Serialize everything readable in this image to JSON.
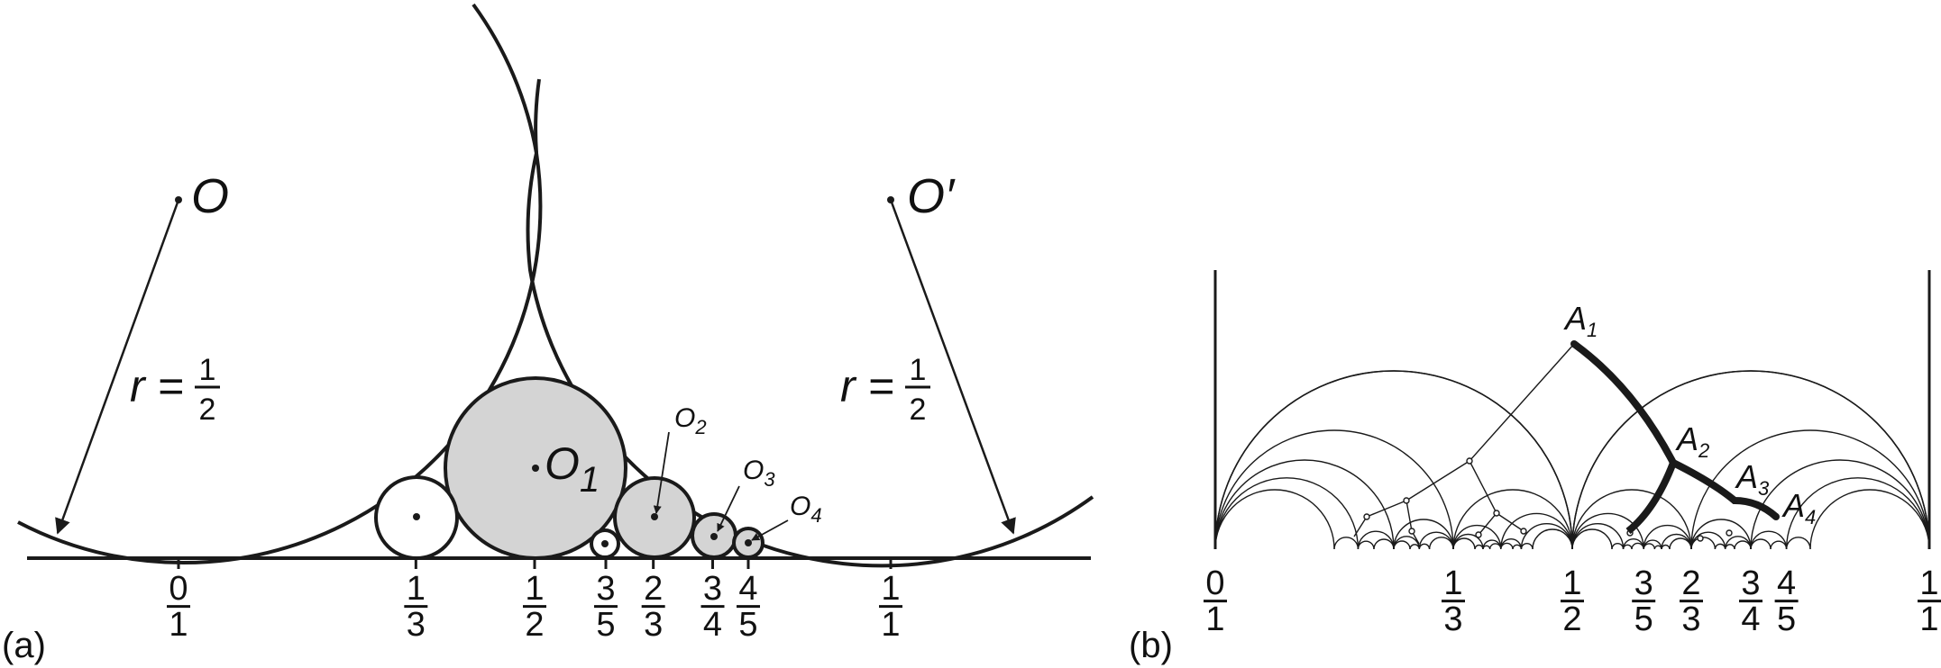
{
  "panel_a": {
    "label": "(a)",
    "centers": {
      "left": "O",
      "right": "O′",
      "big": "O",
      "big_sub": "1"
    },
    "small_centers": [
      {
        "main": "O",
        "sub": "2"
      },
      {
        "main": "O",
        "sub": "3"
      },
      {
        "main": "O",
        "sub": "4"
      }
    ],
    "radius_label": {
      "prefix": "r =",
      "num": "1",
      "den": "2"
    },
    "fractions": [
      {
        "num": "0",
        "den": "1"
      },
      {
        "num": "1",
        "den": "3"
      },
      {
        "num": "1",
        "den": "2"
      },
      {
        "num": "3",
        "den": "5"
      },
      {
        "num": "2",
        "den": "3"
      },
      {
        "num": "3",
        "den": "4"
      },
      {
        "num": "4",
        "den": "5"
      },
      {
        "num": "1",
        "den": "1"
      }
    ],
    "colors": {
      "fill_shaded": "#d4d4d4",
      "stroke": "#1a1a1a"
    }
  },
  "panel_b": {
    "label": "(b)",
    "points": [
      {
        "main": "A",
        "sub": "1"
      },
      {
        "main": "A",
        "sub": "2"
      },
      {
        "main": "A",
        "sub": "3"
      },
      {
        "main": "A",
        "sub": "4"
      }
    ],
    "fractions": [
      {
        "num": "0",
        "den": "1"
      },
      {
        "num": "1",
        "den": "3"
      },
      {
        "num": "1",
        "den": "2"
      },
      {
        "num": "3",
        "den": "5"
      },
      {
        "num": "2",
        "den": "3"
      },
      {
        "num": "3",
        "den": "4"
      },
      {
        "num": "4",
        "den": "5"
      },
      {
        "num": "1",
        "den": "1"
      }
    ]
  }
}
